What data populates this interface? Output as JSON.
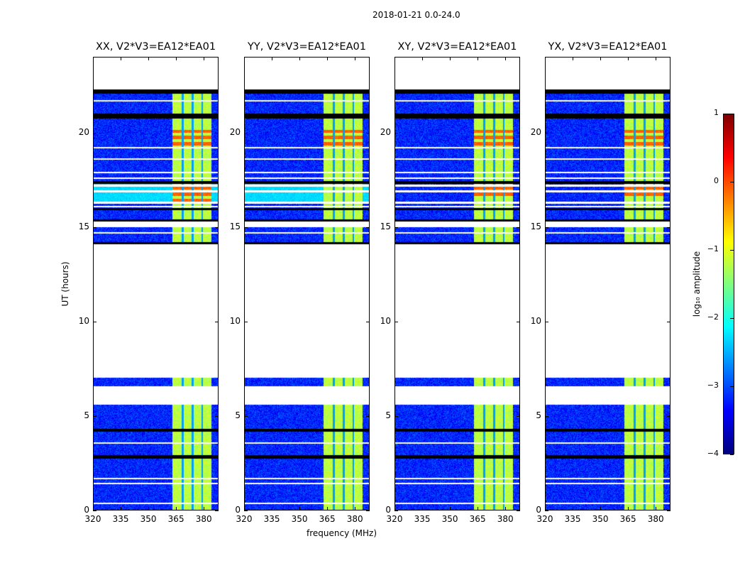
{
  "chart_data": {
    "type": "heatmap",
    "title": "2018-01-21 0.0-24.0",
    "xlabel": "frequency (MHz)",
    "ylabel": "UT (hours)",
    "xlim": [
      320,
      388
    ],
    "ylim": [
      0,
      24
    ],
    "xticks": [
      320,
      335,
      350,
      365,
      380
    ],
    "yticks": [
      0,
      5,
      10,
      15,
      20
    ],
    "panels": [
      {
        "title": "XX, V2*V3=EA12*EA01",
        "hot_hours": [
          [
            19.2,
            20.3
          ],
          [
            16.2,
            17.3
          ]
        ],
        "cyan_hours": [
          [
            16.3,
            17.3
          ]
        ]
      },
      {
        "title": "YY, V2*V3=EA12*EA01",
        "hot_hours": [
          [
            19.2,
            20.3
          ]
        ],
        "cyan_hours": [
          [
            16.3,
            17.3
          ]
        ]
      },
      {
        "title": "XY, V2*V3=EA12*EA01",
        "hot_hours": [
          [
            19.2,
            20.3
          ],
          [
            16.6,
            17.3
          ]
        ],
        "cyan_hours": []
      },
      {
        "title": "YX, V2*V3=EA12*EA01",
        "hot_hours": [
          [
            19.2,
            20.3
          ],
          [
            16.6,
            17.3
          ]
        ],
        "cyan_hours": []
      }
    ],
    "data_hours": [
      [
        0.05,
        5.6
      ],
      [
        6.6,
        7.05
      ],
      [
        14.1,
        15.0
      ],
      [
        15.3,
        22.3
      ]
    ],
    "flagged_white_hours": [
      21.7,
      19.2,
      18.6,
      17.9,
      17.6,
      17.2,
      16.9,
      16.3,
      16.1,
      14.7,
      3.6,
      1.7,
      1.45,
      0.4
    ],
    "black_rows_hours": [
      [
        22.05,
        22.3
      ],
      [
        20.75,
        21.0
      ],
      [
        17.3,
        17.45
      ],
      [
        15.9,
        16.0
      ],
      [
        15.3,
        15.4
      ],
      [
        14.1,
        14.2
      ],
      [
        4.2,
        4.35
      ],
      [
        2.75,
        2.95
      ]
    ],
    "bright_band_mhz": [
      363,
      384
    ],
    "channel_gaps_mhz": [
      368.3,
      373.8,
      379.0
    ],
    "colorbar": {
      "label": "log₁₀ amplitude",
      "range": [
        -4,
        1
      ],
      "ticks": [
        "1",
        "0",
        "−1",
        "−2",
        "−3",
        "−4"
      ],
      "colormap": "jet"
    }
  }
}
